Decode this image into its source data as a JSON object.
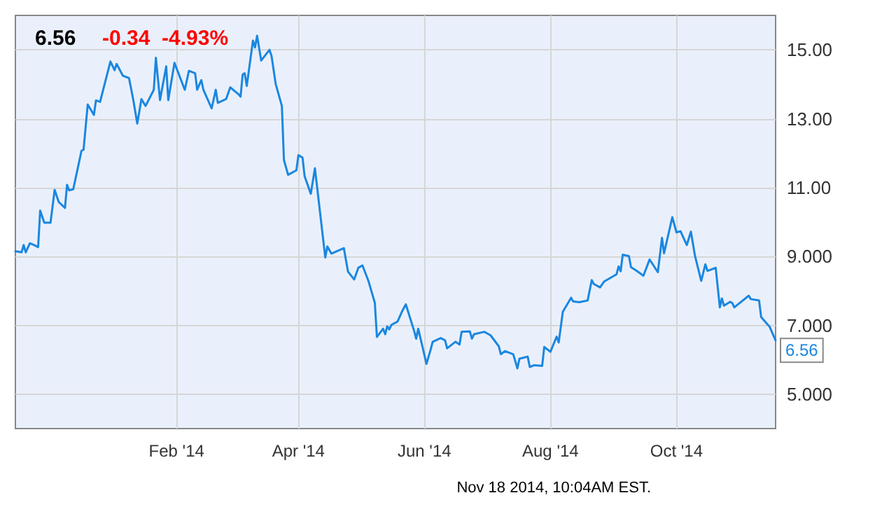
{
  "chart_data": {
    "type": "line",
    "title": "6.56",
    "subtitle": "-0.34  -4.93%",
    "annotations": [
      {
        "text": "6.56",
        "x": "2014-11-18",
        "y": 6.56
      },
      "Nov 18 2014, 10:04AM EST."
    ],
    "x": [
      "2013-11-15",
      "2013-11-18",
      "2013-11-19",
      "2013-11-20",
      "2013-11-22",
      "2013-11-24",
      "2013-11-26",
      "2013-11-27",
      "2013-11-29",
      "2013-12-02",
      "2013-12-04",
      "2013-12-06",
      "2013-12-09",
      "2013-12-10",
      "2013-12-11",
      "2013-12-13",
      "2013-12-17",
      "2013-12-18",
      "2013-12-20",
      "2013-12-23",
      "2013-12-24",
      "2013-12-26",
      "2013-12-31",
      "2014-01-02",
      "2014-01-03",
      "2014-01-06",
      "2014-01-09",
      "2014-01-11",
      "2014-01-13",
      "2014-01-15",
      "2014-01-17",
      "2014-01-21",
      "2014-01-22",
      "2014-01-24",
      "2014-01-27",
      "2014-01-28",
      "2014-01-31",
      "2014-02-05",
      "2014-02-07",
      "2014-02-10",
      "2014-02-11",
      "2014-02-13",
      "2014-02-14",
      "2014-02-18",
      "2014-02-20",
      "2014-02-21",
      "2014-02-25",
      "2014-02-27",
      "2014-03-03",
      "2014-03-04",
      "2014-03-05",
      "2014-03-06",
      "2014-03-07",
      "2014-03-10",
      "2014-03-11",
      "2014-03-12",
      "2014-03-14",
      "2014-03-18",
      "2014-03-19",
      "2014-03-21",
      "2014-03-24",
      "2014-03-25",
      "2014-03-27",
      "2014-03-31",
      "2014-04-01",
      "2014-04-03",
      "2014-04-04",
      "2014-04-07",
      "2014-04-09",
      "2014-04-14",
      "2014-04-15",
      "2014-04-17",
      "2014-04-23",
      "2014-04-25",
      "2014-04-28",
      "2014-04-30",
      "2014-05-02",
      "2014-05-05",
      "2014-05-08",
      "2014-05-09",
      "2014-05-12",
      "2014-05-13",
      "2014-05-14",
      "2014-05-15",
      "2014-05-16",
      "2014-05-19",
      "2014-05-21",
      "2014-05-23",
      "2014-05-27",
      "2014-05-28",
      "2014-05-29",
      "2014-06-02",
      "2014-06-04",
      "2014-06-05",
      "2014-06-09",
      "2014-06-11",
      "2014-06-12",
      "2014-06-16",
      "2014-06-18",
      "2014-06-19",
      "2014-06-23",
      "2014-06-24",
      "2014-06-25",
      "2014-06-30",
      "2014-07-03",
      "2014-07-07",
      "2014-07-08",
      "2014-07-10",
      "2014-07-14",
      "2014-07-16",
      "2014-07-17",
      "2014-07-21",
      "2014-07-22",
      "2014-07-24",
      "2014-07-28",
      "2014-07-29",
      "2014-08-01",
      "2014-08-04",
      "2014-08-05",
      "2014-08-07",
      "2014-08-11",
      "2014-08-12",
      "2014-08-15",
      "2014-08-19",
      "2014-08-21",
      "2014-08-22",
      "2014-08-25",
      "2014-08-27",
      "2014-09-02",
      "2014-09-03",
      "2014-09-04",
      "2014-09-05",
      "2014-09-08",
      "2014-09-09",
      "2014-09-12",
      "2014-09-15",
      "2014-09-18",
      "2014-09-19",
      "2014-09-22",
      "2014-09-24",
      "2014-09-25",
      "2014-09-29",
      "2014-10-01",
      "2014-10-03",
      "2014-10-06",
      "2014-10-08",
      "2014-10-10",
      "2014-10-13",
      "2014-10-15",
      "2014-10-16",
      "2014-10-20",
      "2014-10-22",
      "2014-10-23",
      "2014-10-24",
      "2014-10-27",
      "2014-10-28",
      "2014-10-29",
      "2014-11-05",
      "2014-11-06",
      "2014-11-10",
      "2014-11-11",
      "2014-11-14",
      "2014-11-15",
      "2014-11-18"
    ],
    "series": [
      {
        "color": "#1a87e0",
        "values": [
          9.15,
          9.12,
          9.33,
          9.12,
          9.38,
          9.33,
          9.27,
          10.33,
          9.98,
          9.98,
          10.93,
          10.58,
          10.41,
          11.08,
          10.92,
          10.95,
          12.07,
          12.1,
          13.41,
          13.11,
          13.53,
          13.49,
          14.66,
          14.41,
          14.59,
          14.25,
          14.18,
          13.57,
          12.86,
          13.57,
          13.37,
          13.84,
          14.77,
          13.54,
          14.52,
          13.54,
          14.62,
          13.84,
          14.39,
          14.32,
          13.84,
          14.12,
          13.84,
          13.3,
          13.84,
          13.46,
          13.57,
          13.91,
          13.71,
          13.64,
          14.28,
          14.32,
          13.95,
          15.27,
          15.07,
          15.41,
          14.69,
          15.0,
          14.82,
          14.01,
          13.37,
          11.8,
          11.37,
          11.5,
          11.94,
          11.87,
          11.33,
          10.82,
          11.56,
          8.97,
          9.29,
          9.08,
          9.24,
          8.56,
          8.33,
          8.67,
          8.74,
          8.27,
          7.65,
          6.66,
          6.9,
          6.74,
          6.97,
          6.88,
          7.01,
          7.11,
          7.38,
          7.61,
          6.84,
          6.61,
          6.9,
          5.88,
          6.29,
          6.52,
          6.63,
          6.56,
          6.33,
          6.52,
          6.44,
          6.81,
          6.82,
          6.61,
          6.74,
          6.81,
          6.71,
          6.39,
          6.16,
          6.25,
          6.16,
          5.75,
          6.03,
          6.09,
          5.79,
          5.84,
          5.82,
          6.37,
          6.23,
          6.67,
          6.5,
          7.39,
          7.8,
          7.69,
          7.67,
          7.72,
          8.31,
          8.2,
          8.1,
          8.27,
          8.48,
          8.71,
          8.57,
          9.05,
          9.01,
          8.69,
          8.57,
          8.44,
          8.91,
          8.82,
          8.54,
          9.54,
          9.09,
          10.14,
          9.7,
          9.73,
          9.33,
          9.72,
          9.01,
          8.29,
          8.77,
          8.58,
          8.67,
          7.52,
          7.78,
          7.57,
          7.68,
          7.65,
          7.52,
          7.86,
          7.76,
          7.72,
          7.24,
          7.03,
          6.97,
          6.56
        ]
      }
    ],
    "xlim": [
      "2013-11-15",
      "2014-11-18"
    ],
    "xticks": [
      {
        "value": "2014-02-01",
        "label": "Feb '14"
      },
      {
        "value": "2014-04-01",
        "label": "Apr '14"
      },
      {
        "value": "2014-06-01",
        "label": "Jun '14"
      },
      {
        "value": "2014-08-01",
        "label": "Aug '14"
      },
      {
        "value": "2014-10-01",
        "label": "Oct '14"
      }
    ],
    "ylim": [
      4,
      16
    ],
    "yticks": [
      {
        "value": 5,
        "label": "5.000"
      },
      {
        "value": 7,
        "label": "7.000"
      },
      {
        "value": 9,
        "label": "9.000"
      },
      {
        "value": 11,
        "label": "11.00"
      },
      {
        "value": 13,
        "label": "13.00"
      },
      {
        "value": 15,
        "label": "15.00"
      }
    ],
    "grid": true,
    "marker": "none",
    "line_style": "solid"
  }
}
